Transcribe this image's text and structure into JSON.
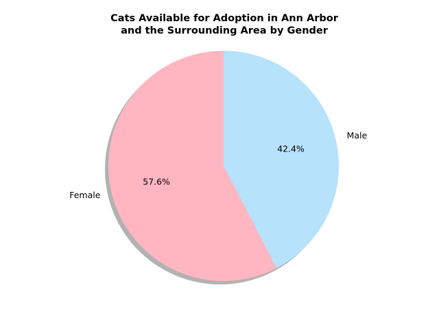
{
  "chart_data": {
    "type": "pie",
    "title_lines": [
      "Cats Available for Adoption in Ann Arbor",
      "and the Surrounding Area by Gender"
    ],
    "labels": [
      "Female",
      "Male"
    ],
    "values": [
      57.6,
      42.4
    ],
    "pct_labels": [
      "57.6%",
      "42.4%"
    ],
    "colors": [
      "#ffb6c1",
      "#b6e2fb"
    ],
    "start_angle_deg": 90,
    "direction": "counterclockwise",
    "shadow": true
  }
}
